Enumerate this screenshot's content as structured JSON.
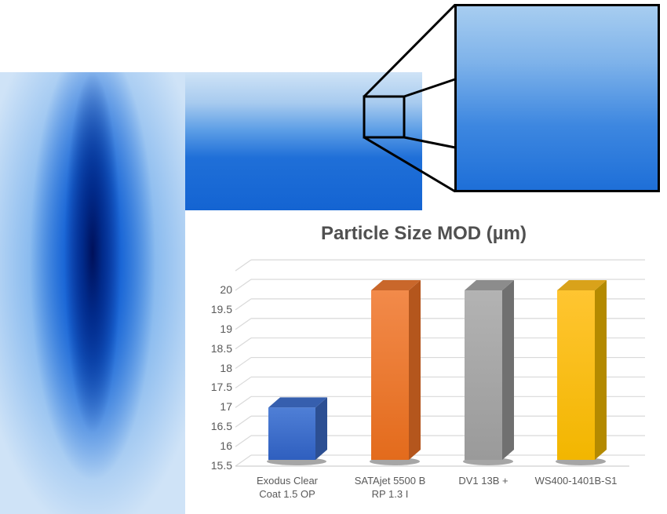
{
  "figure": {
    "panels": {
      "spray_pattern_vertical": "Blue spray pattern (vertical fan)",
      "spray_pattern_band": "Blue spray pattern section",
      "magnified_inset": "Magnified region of spray pattern"
    }
  },
  "chart_data": {
    "type": "bar",
    "style": "3d-clustered-column",
    "title": "Particle Size MOD (µm)",
    "xlabel": "",
    "ylabel": "",
    "categories": [
      "Exodus Clear Coat 1.5 OP",
      "SATAjet 5500 B RP 1.3 I",
      "DV1 13B +",
      "WS400-1401B-S1"
    ],
    "category_lines": [
      [
        "Exodus Clear",
        "Coat 1.5 OP"
      ],
      [
        "SATAjet 5500 B",
        "RP 1.3 I"
      ],
      [
        "DV1 13B +",
        ""
      ],
      [
        "WS400-1401B-S1",
        ""
      ]
    ],
    "values": [
      17.0,
      20.0,
      20.0,
      20.0
    ],
    "colors": [
      "#4472C4",
      "#ED7D31",
      "#A5A5A5",
      "#FFC000"
    ],
    "yticks": [
      "20",
      "19.5",
      "19",
      "18.5",
      "18",
      "17.5",
      "17",
      "16.5",
      "16",
      "15.5"
    ],
    "ylim": [
      15.5,
      20.0
    ],
    "grid": true,
    "legend": "none"
  }
}
